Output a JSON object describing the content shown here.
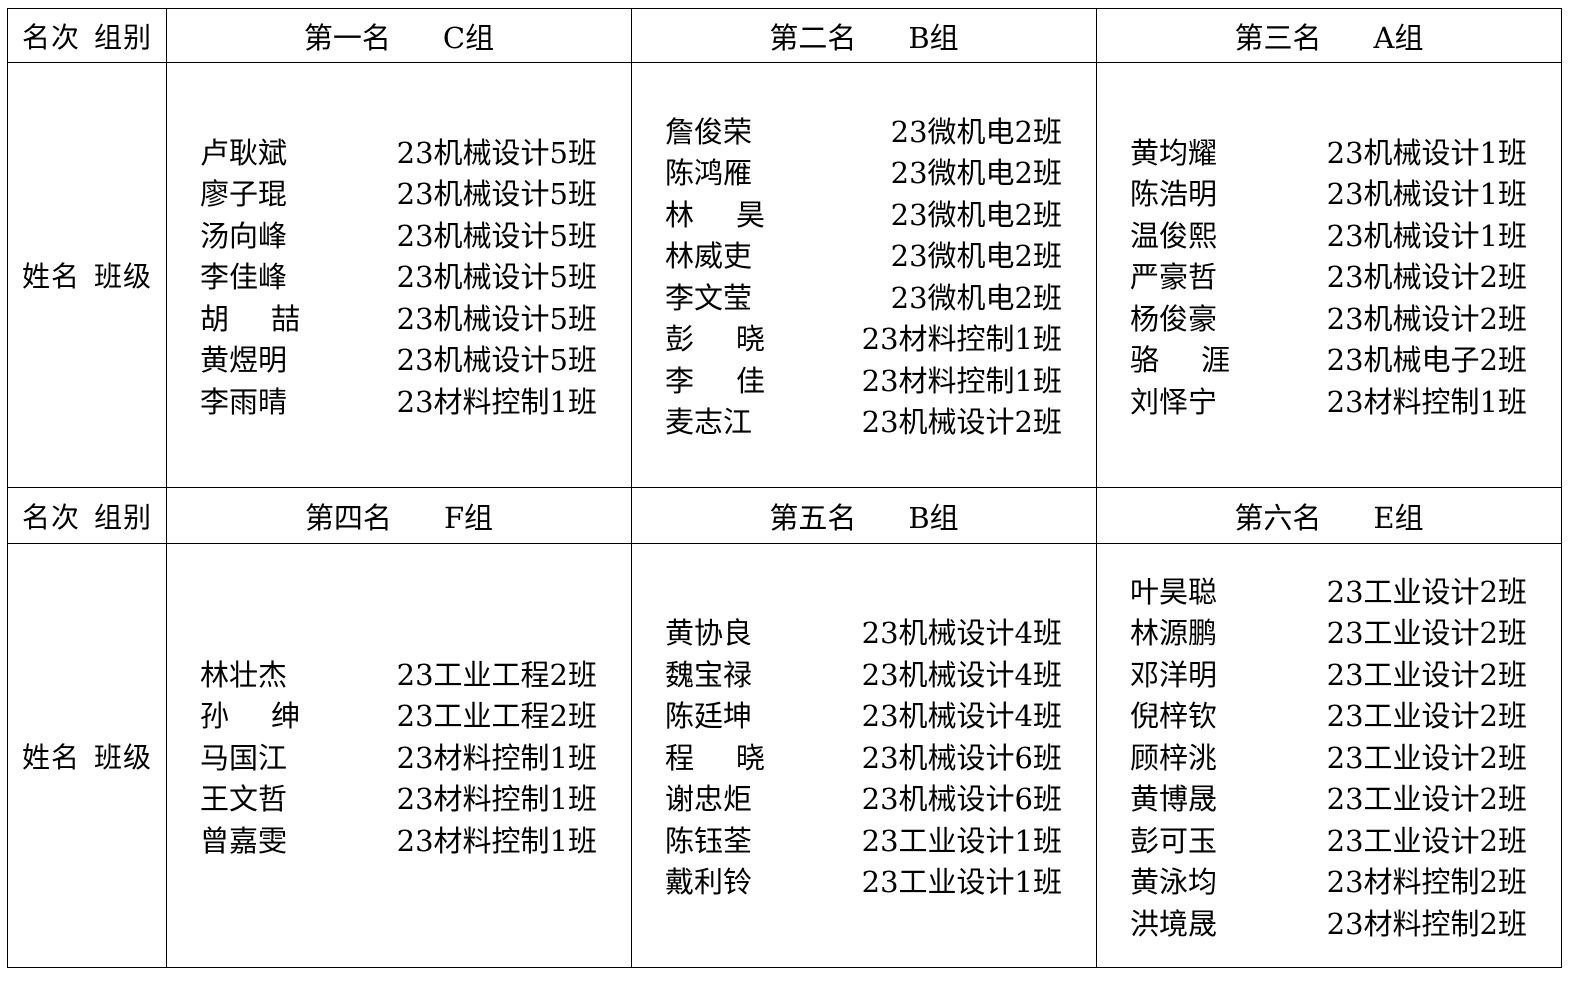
{
  "label_header": [
    "名次",
    "组别"
  ],
  "label_body": [
    "姓名",
    "班级"
  ],
  "groups": [
    {
      "rank": "第一名",
      "group": "C组",
      "members": [
        {
          "name": "卢耿斌",
          "class": "23机械设计5班"
        },
        {
          "name": "廖子琨",
          "class": "23机械设计5班"
        },
        {
          "name": "汤向峰",
          "class": "23机械设计5班"
        },
        {
          "name": "李佳峰",
          "class": "23机械设计5班"
        },
        {
          "name": "胡喆",
          "class": "23机械设计5班"
        },
        {
          "name": "黄煜明",
          "class": "23机械设计5班"
        },
        {
          "name": "李雨晴",
          "class": "23材料控制1班"
        }
      ]
    },
    {
      "rank": "第二名",
      "group": "B组",
      "members": [
        {
          "name": "詹俊荣",
          "class": "23微机电2班"
        },
        {
          "name": "陈鸿雁",
          "class": "23微机电2班"
        },
        {
          "name": "林昊",
          "class": "23微机电2班"
        },
        {
          "name": "林威吏",
          "class": "23微机电2班"
        },
        {
          "name": "李文莹",
          "class": "23微机电2班"
        },
        {
          "name": "彭晓",
          "class": "23材料控制1班"
        },
        {
          "name": "李佳",
          "class": "23材料控制1班"
        },
        {
          "name": "麦志江",
          "class": "23机械设计2班"
        }
      ]
    },
    {
      "rank": "第三名",
      "group": "A组",
      "members": [
        {
          "name": "黄均耀",
          "class": "23机械设计1班"
        },
        {
          "name": "陈浩明",
          "class": "23机械设计1班"
        },
        {
          "name": "温俊熙",
          "class": "23机械设计1班"
        },
        {
          "name": "严豪哲",
          "class": "23机械设计2班"
        },
        {
          "name": "杨俊豪",
          "class": "23机械设计2班"
        },
        {
          "name": "骆涯",
          "class": "23机械电子2班"
        },
        {
          "name": "刘怿宁",
          "class": "23材料控制1班"
        }
      ]
    },
    {
      "rank": "第四名",
      "group": "F组",
      "members": [
        {
          "name": "林壮杰",
          "class": "23工业工程2班"
        },
        {
          "name": "孙绅",
          "class": "23工业工程2班"
        },
        {
          "name": "马国江",
          "class": "23材料控制1班"
        },
        {
          "name": "王文哲",
          "class": "23材料控制1班"
        },
        {
          "name": "曾嘉雯",
          "class": "23材料控制1班"
        }
      ]
    },
    {
      "rank": "第五名",
      "group": "B组",
      "members": [
        {
          "name": "黄协良",
          "class": "23机械设计4班"
        },
        {
          "name": "魏宝禄",
          "class": "23机械设计4班"
        },
        {
          "name": "陈廷坤",
          "class": "23机械设计4班"
        },
        {
          "name": "程晓",
          "class": "23机械设计6班"
        },
        {
          "name": "谢忠炬",
          "class": "23机械设计6班"
        },
        {
          "name": "陈钰荃",
          "class": "23工业设计1班"
        },
        {
          "name": "戴利铃",
          "class": "23工业设计1班"
        }
      ]
    },
    {
      "rank": "第六名",
      "group": "E组",
      "members": [
        {
          "name": "叶昊聪",
          "class": "23工业设计2班"
        },
        {
          "name": "林源鹏",
          "class": "23工业设计2班"
        },
        {
          "name": "邓洋明",
          "class": "23工业设计2班"
        },
        {
          "name": "倪梓钦",
          "class": "23工业设计2班"
        },
        {
          "name": "顾梓洮",
          "class": "23工业设计2班"
        },
        {
          "name": "黄博晟",
          "class": "23工业设计2班"
        },
        {
          "name": "彭可玉",
          "class": "23工业设计2班"
        },
        {
          "name": "黄泳均",
          "class": "23材料控制2班"
        },
        {
          "name": "洪境晟",
          "class": "23材料控制2班"
        }
      ]
    }
  ]
}
